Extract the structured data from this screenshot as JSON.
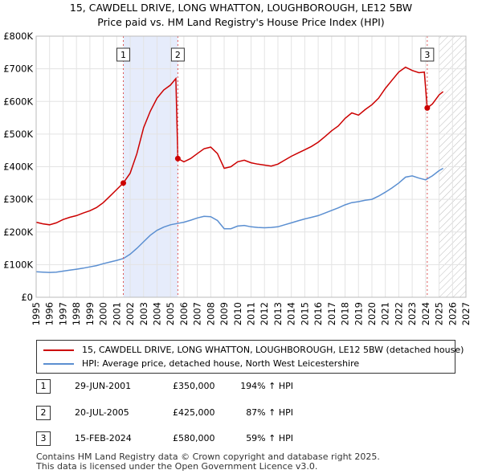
{
  "header": {
    "title_line1": "15, CAWDELL DRIVE, LONG WHATTON, LOUGHBOROUGH, LE12 5BW",
    "title_line2": "Price paid vs. HM Land Registry's House Price Index (HPI)"
  },
  "colors": {
    "property_line": "#cc0000",
    "hpi_line": "#5b8fd1",
    "shade": "#e6ecfb",
    "marker_line": "#dd5555"
  },
  "legend": {
    "property_label": "15, CAWDELL DRIVE, LONG WHATTON, LOUGHBOROUGH, LE12 5BW (detached house)",
    "hpi_label": "HPI: Average price, detached house, North West Leicestershire"
  },
  "sales": [
    {
      "num": "1",
      "date": "29-JUN-2001",
      "price": "£350,000",
      "hpi": "194% ↑ HPI"
    },
    {
      "num": "2",
      "date": "20-JUL-2005",
      "price": "£425,000",
      "hpi": "87% ↑ HPI"
    },
    {
      "num": "3",
      "date": "15-FEB-2024",
      "price": "£580,000",
      "hpi": "59% ↑ HPI"
    }
  ],
  "footer": {
    "line1": "Contains HM Land Registry data © Crown copyright and database right 2025.",
    "line2": "This data is licensed under the Open Government Licence v3.0."
  },
  "chart_data": {
    "type": "line",
    "title": "15, CAWDELL DRIVE, LONG WHATTON, LOUGHBOROUGH, LE12 5BW",
    "subtitle": "Price paid vs. HM Land Registry's House Price Index (HPI)",
    "xlabel": "",
    "ylabel": "",
    "xlim": [
      1995,
      2027
    ],
    "ylim": [
      0,
      800000
    ],
    "x_ticks": [
      "1995",
      "1996",
      "1997",
      "1998",
      "1999",
      "2000",
      "2001",
      "2002",
      "2003",
      "2004",
      "2005",
      "2006",
      "2007",
      "2008",
      "2009",
      "2010",
      "2011",
      "2012",
      "2013",
      "2014",
      "2015",
      "2016",
      "2017",
      "2018",
      "2019",
      "2020",
      "2021",
      "2022",
      "2023",
      "2024",
      "2025",
      "2026",
      "2027"
    ],
    "y_ticks": [
      {
        "value": 0,
        "label": "£0"
      },
      {
        "value": 100000,
        "label": "£100K"
      },
      {
        "value": 200000,
        "label": "£200K"
      },
      {
        "value": 300000,
        "label": "£300K"
      },
      {
        "value": 400000,
        "label": "£400K"
      },
      {
        "value": 500000,
        "label": "£500K"
      },
      {
        "value": 600000,
        "label": "£600K"
      },
      {
        "value": 700000,
        "label": "£700K"
      },
      {
        "value": 800000,
        "label": "£800K"
      }
    ],
    "shaded_range": [
      2001.49,
      2005.55
    ],
    "future_hatch_from": 2025.0,
    "sale_markers": [
      {
        "label": "1",
        "x": 2001.49,
        "y": 350000
      },
      {
        "label": "2",
        "x": 2005.55,
        "y": 425000
      },
      {
        "label": "3",
        "x": 2024.12,
        "y": 580000
      }
    ],
    "series": [
      {
        "name": "15, CAWDELL DRIVE, LONG WHATTON, LOUGHBOROUGH, LE12 5BW (detached house)",
        "color": "#cc0000",
        "points": [
          [
            1995.0,
            230000
          ],
          [
            1995.5,
            225000
          ],
          [
            1996.0,
            222000
          ],
          [
            1996.5,
            228000
          ],
          [
            1997.0,
            238000
          ],
          [
            1997.5,
            245000
          ],
          [
            1998.0,
            250000
          ],
          [
            1998.5,
            258000
          ],
          [
            1999.0,
            265000
          ],
          [
            1999.5,
            275000
          ],
          [
            2000.0,
            290000
          ],
          [
            2000.5,
            310000
          ],
          [
            2001.0,
            330000
          ],
          [
            2001.49,
            350000
          ],
          [
            2002.0,
            380000
          ],
          [
            2002.5,
            440000
          ],
          [
            2003.0,
            520000
          ],
          [
            2003.5,
            570000
          ],
          [
            2004.0,
            610000
          ],
          [
            2004.5,
            635000
          ],
          [
            2005.0,
            650000
          ],
          [
            2005.4,
            670000
          ],
          [
            2005.55,
            425000
          ],
          [
            2006.0,
            415000
          ],
          [
            2006.5,
            425000
          ],
          [
            2007.0,
            440000
          ],
          [
            2007.5,
            455000
          ],
          [
            2008.0,
            460000
          ],
          [
            2008.5,
            440000
          ],
          [
            2009.0,
            395000
          ],
          [
            2009.5,
            400000
          ],
          [
            2010.0,
            415000
          ],
          [
            2010.5,
            420000
          ],
          [
            2011.0,
            412000
          ],
          [
            2011.5,
            408000
          ],
          [
            2012.0,
            405000
          ],
          [
            2012.5,
            402000
          ],
          [
            2013.0,
            408000
          ],
          [
            2013.5,
            420000
          ],
          [
            2014.0,
            432000
          ],
          [
            2014.5,
            442000
          ],
          [
            2015.0,
            452000
          ],
          [
            2015.5,
            462000
          ],
          [
            2016.0,
            475000
          ],
          [
            2016.5,
            492000
          ],
          [
            2017.0,
            510000
          ],
          [
            2017.5,
            525000
          ],
          [
            2018.0,
            548000
          ],
          [
            2018.5,
            565000
          ],
          [
            2019.0,
            558000
          ],
          [
            2019.5,
            575000
          ],
          [
            2020.0,
            590000
          ],
          [
            2020.5,
            610000
          ],
          [
            2021.0,
            640000
          ],
          [
            2021.5,
            665000
          ],
          [
            2022.0,
            690000
          ],
          [
            2022.5,
            705000
          ],
          [
            2023.0,
            695000
          ],
          [
            2023.5,
            688000
          ],
          [
            2023.9,
            690000
          ],
          [
            2024.12,
            580000
          ],
          [
            2024.5,
            592000
          ],
          [
            2025.0,
            620000
          ],
          [
            2025.3,
            630000
          ]
        ]
      },
      {
        "name": "HPI: Average price, detached house, North West Leicestershire",
        "color": "#5b8fd1",
        "points": [
          [
            1995.0,
            78000
          ],
          [
            1995.5,
            77000
          ],
          [
            1996.0,
            76000
          ],
          [
            1996.5,
            77000
          ],
          [
            1997.0,
            80000
          ],
          [
            1997.5,
            83000
          ],
          [
            1998.0,
            86000
          ],
          [
            1998.5,
            89000
          ],
          [
            1999.0,
            93000
          ],
          [
            1999.5,
            97000
          ],
          [
            2000.0,
            103000
          ],
          [
            2000.5,
            108000
          ],
          [
            2001.0,
            113000
          ],
          [
            2001.5,
            119000
          ],
          [
            2002.0,
            132000
          ],
          [
            2002.5,
            150000
          ],
          [
            2003.0,
            170000
          ],
          [
            2003.5,
            190000
          ],
          [
            2004.0,
            205000
          ],
          [
            2004.5,
            215000
          ],
          [
            2005.0,
            222000
          ],
          [
            2005.5,
            226000
          ],
          [
            2006.0,
            230000
          ],
          [
            2006.5,
            236000
          ],
          [
            2007.0,
            243000
          ],
          [
            2007.5,
            248000
          ],
          [
            2008.0,
            247000
          ],
          [
            2008.5,
            235000
          ],
          [
            2009.0,
            210000
          ],
          [
            2009.5,
            210000
          ],
          [
            2010.0,
            218000
          ],
          [
            2010.5,
            220000
          ],
          [
            2011.0,
            216000
          ],
          [
            2011.5,
            214000
          ],
          [
            2012.0,
            213000
          ],
          [
            2012.5,
            214000
          ],
          [
            2013.0,
            216000
          ],
          [
            2013.5,
            222000
          ],
          [
            2014.0,
            228000
          ],
          [
            2014.5,
            234000
          ],
          [
            2015.0,
            240000
          ],
          [
            2015.5,
            245000
          ],
          [
            2016.0,
            250000
          ],
          [
            2016.5,
            258000
          ],
          [
            2017.0,
            266000
          ],
          [
            2017.5,
            274000
          ],
          [
            2018.0,
            283000
          ],
          [
            2018.5,
            290000
          ],
          [
            2019.0,
            293000
          ],
          [
            2019.5,
            297000
          ],
          [
            2020.0,
            300000
          ],
          [
            2020.5,
            310000
          ],
          [
            2021.0,
            322000
          ],
          [
            2021.5,
            335000
          ],
          [
            2022.0,
            350000
          ],
          [
            2022.5,
            368000
          ],
          [
            2023.0,
            372000
          ],
          [
            2023.5,
            365000
          ],
          [
            2024.0,
            360000
          ],
          [
            2024.5,
            372000
          ],
          [
            2025.0,
            388000
          ],
          [
            2025.3,
            395000
          ]
        ]
      }
    ]
  }
}
